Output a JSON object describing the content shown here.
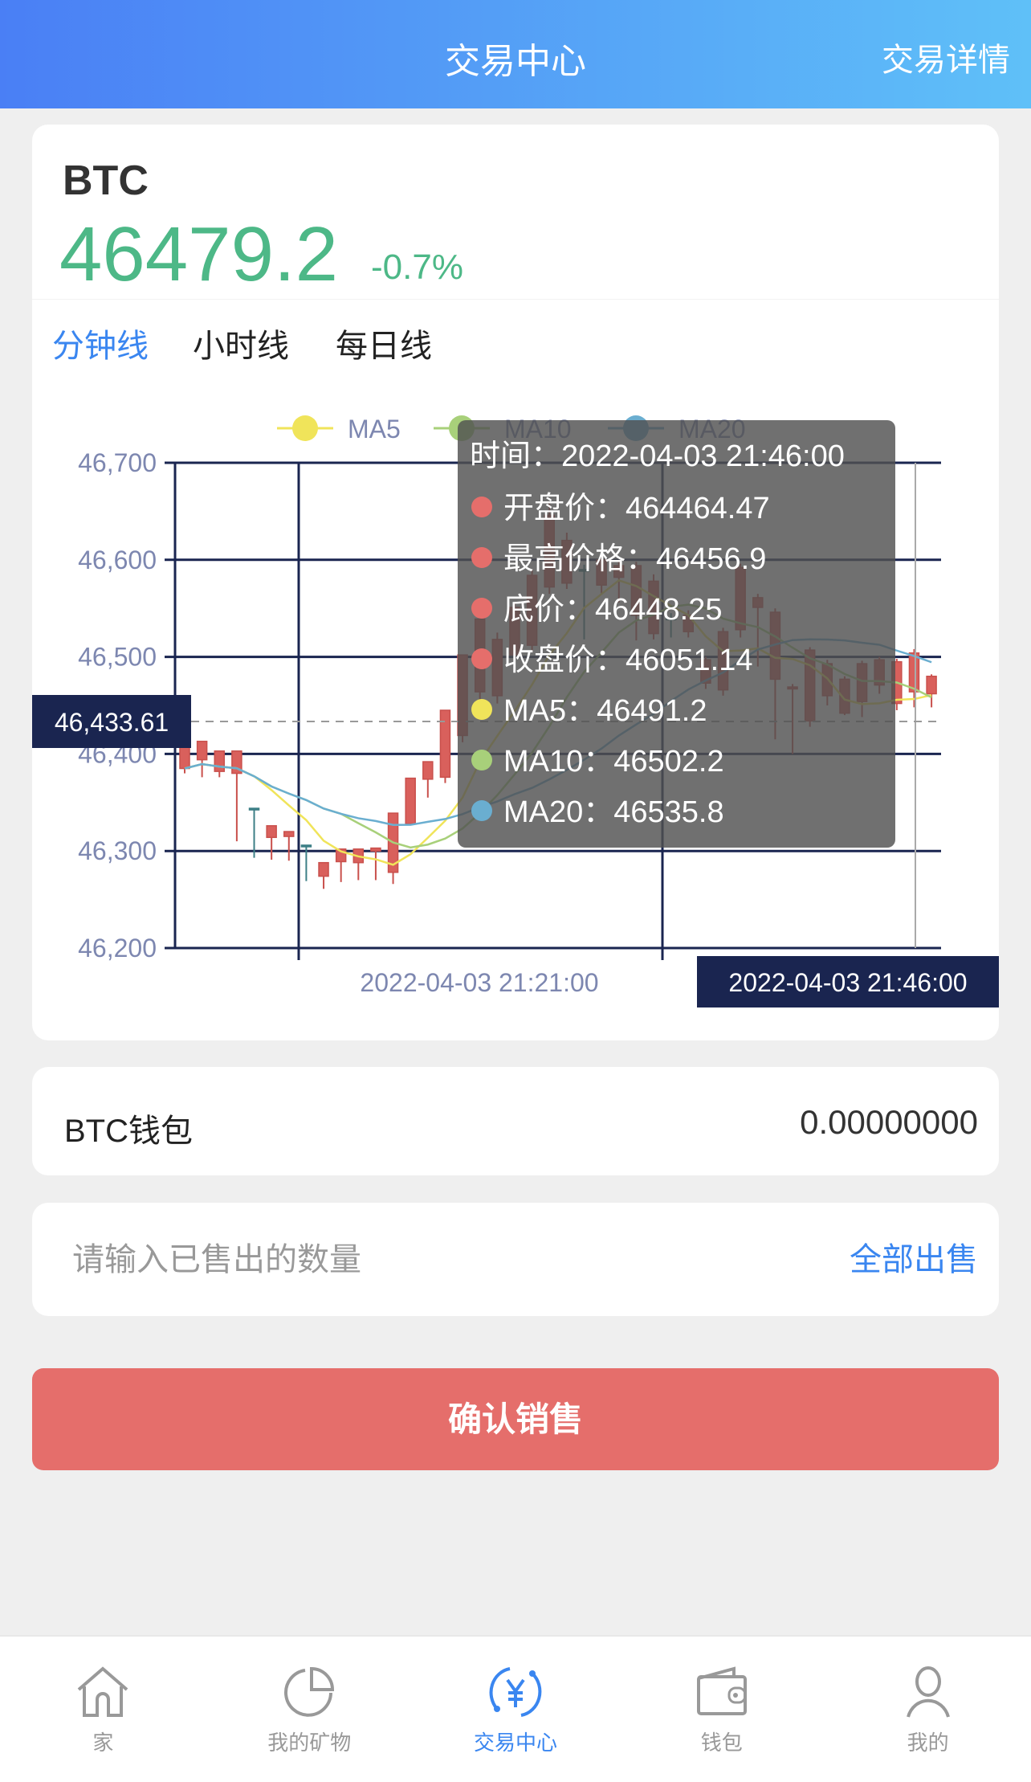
{
  "header": {
    "title": "交易中心",
    "right_link": "交易详情"
  },
  "coin": {
    "symbol": "BTC",
    "price": "46479.2",
    "change": "-0.7%",
    "up_color": "#4db887"
  },
  "tabs": [
    {
      "label": "分钟线",
      "active": true
    },
    {
      "label": "小时线",
      "active": false
    },
    {
      "label": "每日线",
      "active": false
    }
  ],
  "chart_data": {
    "type": "candlestick",
    "legend": [
      "MA5",
      "MA10",
      "MA20"
    ],
    "legend_colors": {
      "MA5": "#f0e45a",
      "MA10": "#a8d07a",
      "MA20": "#6aaed0"
    },
    "ylim": [
      46200,
      46700
    ],
    "y_ticks": [
      "46,700",
      "46,600",
      "46,500",
      "46,400",
      "46,300",
      "46,200"
    ],
    "x_label": "2022-04-03 21:21:00",
    "crosshair": {
      "y_value": "46,433.61",
      "x_value": "2022-04-03 21:46:00"
    },
    "candles": [
      [
        46407,
        46385,
        46413,
        46380
      ],
      [
        46413,
        46394,
        46413,
        46376
      ],
      [
        46403,
        46382,
        46403,
        46376
      ],
      [
        46403,
        46380,
        46403,
        46310
      ],
      [
        46344,
        46344,
        46344,
        46293
      ],
      [
        46326,
        46314,
        46326,
        46291
      ],
      [
        46320,
        46315,
        46320,
        46290
      ],
      [
        46306,
        46306,
        46306,
        46269
      ],
      [
        46288,
        46274,
        46288,
        46261
      ],
      [
        46302,
        46289,
        46302,
        46268
      ],
      [
        46302,
        46288,
        46302,
        46270
      ],
      [
        46303,
        46300,
        46303,
        46270
      ],
      [
        46339,
        46278,
        46339,
        46266
      ],
      [
        46375,
        46328,
        46375,
        46328
      ],
      [
        46392,
        46374,
        46392,
        46355
      ],
      [
        46445,
        46376,
        46445,
        46370
      ],
      [
        46502,
        46419,
        46502,
        46412
      ],
      [
        46539,
        46464,
        46545,
        46455
      ],
      [
        46518,
        46460,
        46525,
        46452
      ],
      [
        46551,
        46502,
        46556,
        46495
      ],
      [
        46584,
        46512,
        46590,
        46505
      ],
      [
        46646,
        46572,
        46660,
        46565
      ],
      [
        46620,
        46576,
        46628,
        46570
      ],
      [
        46590,
        46590,
        46595,
        46518
      ],
      [
        46600,
        46574,
        46605,
        46565
      ],
      [
        46594,
        46582,
        46598,
        46556
      ],
      [
        46594,
        46543,
        46598,
        46517
      ],
      [
        46578,
        46524,
        46585,
        46518
      ],
      [
        46540,
        46540,
        46545,
        46520
      ],
      [
        46543,
        46526,
        46548,
        46520
      ],
      [
        46497,
        46473,
        46500,
        46467
      ],
      [
        46526,
        46466,
        46530,
        46460
      ],
      [
        46592,
        46528,
        46596,
        46520
      ],
      [
        46561,
        46551,
        46565,
        46490
      ],
      [
        46546,
        46477,
        46550,
        46415
      ],
      [
        46469,
        46467,
        46472,
        46400
      ],
      [
        46507,
        46434,
        46510,
        46428
      ],
      [
        46493,
        46460,
        46497,
        46450
      ],
      [
        46477,
        46442,
        46480,
        46440
      ],
      [
        46493,
        46454,
        46496,
        46438
      ],
      [
        46497,
        46471,
        46500,
        46462
      ],
      [
        46495,
        46452,
        46498,
        46445
      ],
      [
        46504,
        46464,
        46508,
        46448
      ],
      [
        46480,
        46462,
        46482,
        46448
      ]
    ],
    "candle_format": "[open, close, high, low]"
  },
  "tooltip": {
    "time": "时间：2022-04-03 21:46:00",
    "rows": [
      {
        "label": "开盘价：464464.47",
        "color": "#e56e6b"
      },
      {
        "label": "最高价格：46456.9",
        "color": "#e56e6b"
      },
      {
        "label": "底价：46448.25",
        "color": "#e56e6b"
      },
      {
        "label": "收盘价：46051.14",
        "color": "#e56e6b"
      },
      {
        "label": "MA5：46491.2",
        "color": "#f0e45a"
      },
      {
        "label": "MA10：46502.2",
        "color": "#a8d07a"
      },
      {
        "label": "MA20：46535.8",
        "color": "#6aaed0"
      }
    ]
  },
  "wallet": {
    "label": "BTC钱包",
    "value": "0.00000000"
  },
  "sell": {
    "placeholder": "请输入已售出的数量",
    "value": "",
    "sell_all": "全部出售",
    "confirm": "确认销售"
  },
  "nav": [
    {
      "label": "家",
      "icon": "home-icon"
    },
    {
      "label": "我的矿物",
      "icon": "pie-chart-icon"
    },
    {
      "label": "交易中心",
      "icon": "yuan-exchange-icon",
      "active": true
    },
    {
      "label": "钱包",
      "icon": "wallet-icon"
    },
    {
      "label": "我的",
      "icon": "user-icon"
    }
  ]
}
